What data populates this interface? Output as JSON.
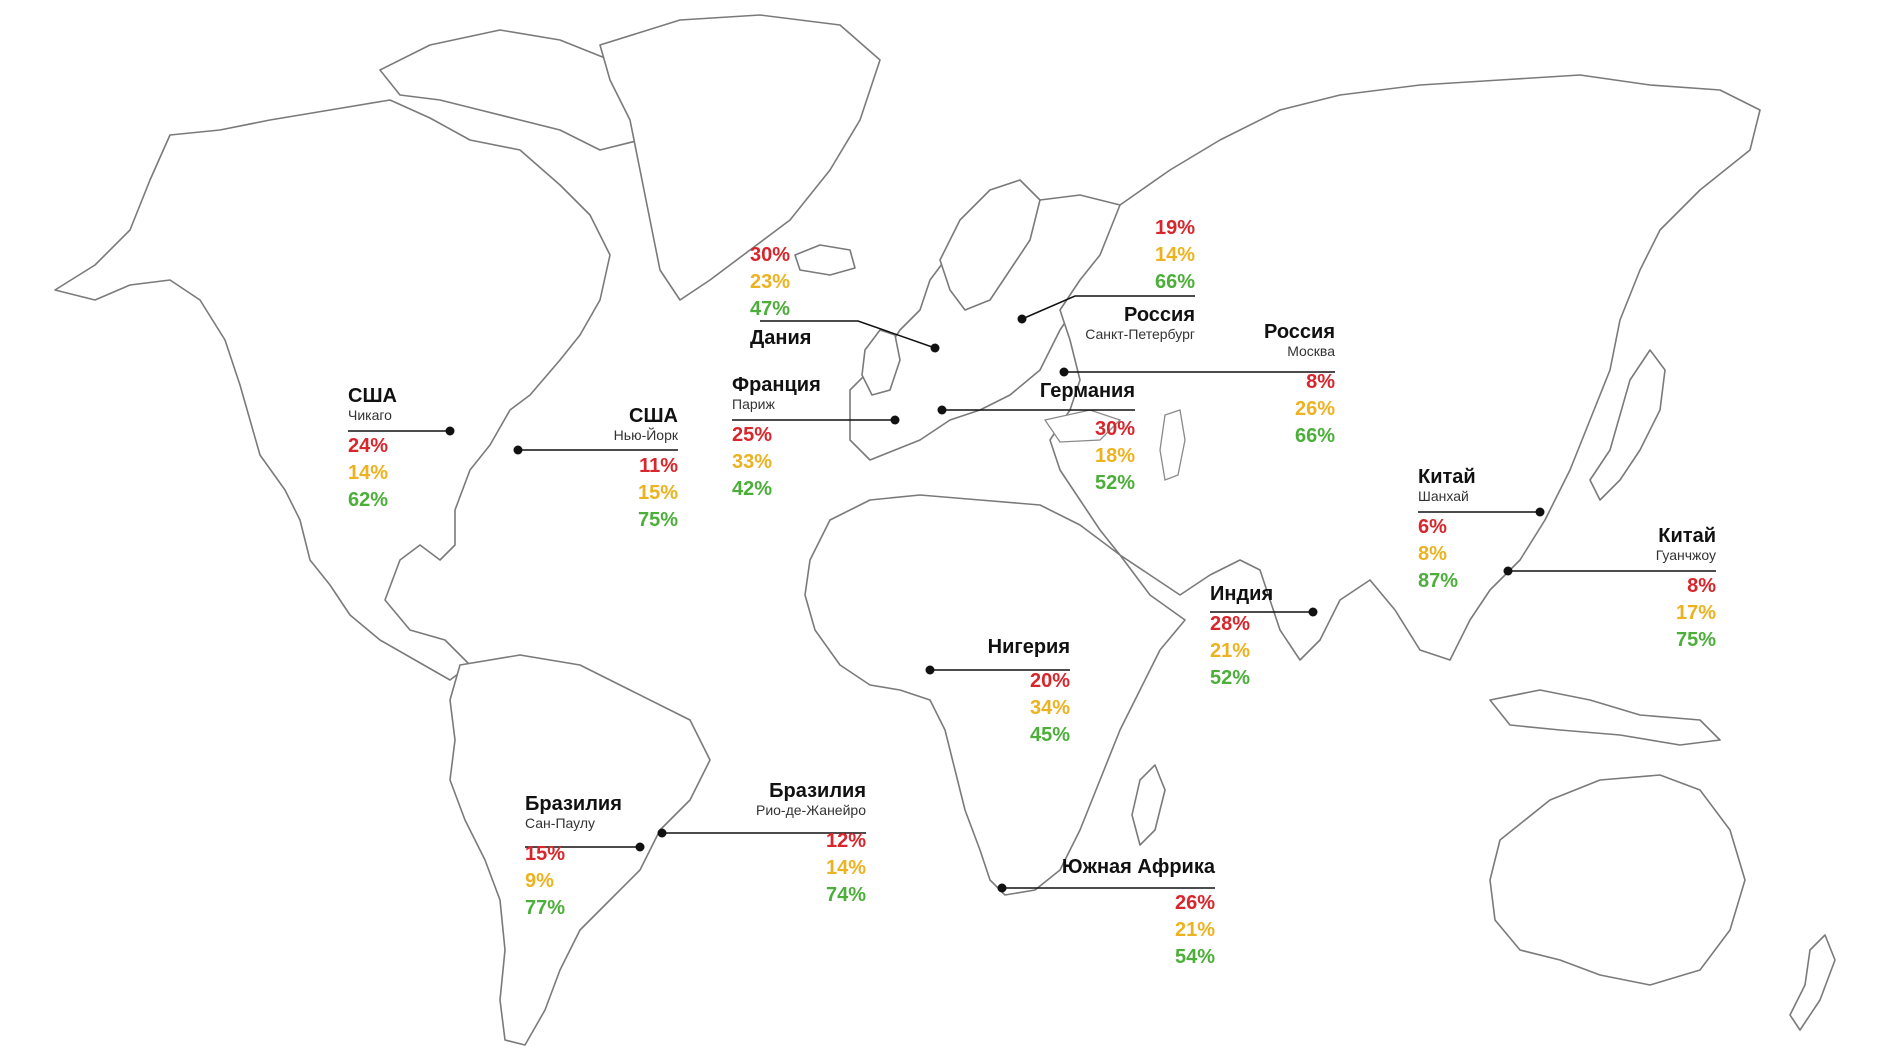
{
  "colors": {
    "red": "#d7262c",
    "yellow": "#ecb220",
    "green": "#4caf3a",
    "land_outline": "#7a7a7a"
  },
  "callouts": [
    {
      "country": "США",
      "city": "Чикаго",
      "values": [
        "24%",
        "14%",
        "62%"
      ]
    },
    {
      "country": "США",
      "city": "Нью-Йорк",
      "values": [
        "11%",
        "15%",
        "75%"
      ]
    },
    {
      "country": "Дания",
      "city": "",
      "values": [
        "30%",
        "23%",
        "47%"
      ]
    },
    {
      "country": "Франция",
      "city": "Париж",
      "values": [
        "25%",
        "33%",
        "42%"
      ]
    },
    {
      "country": "Россия",
      "city": "Санкт-Петербург",
      "values": [
        "19%",
        "14%",
        "66%"
      ]
    },
    {
      "country": "Россия",
      "city": "Москва",
      "values": [
        "8%",
        "26%",
        "66%"
      ]
    },
    {
      "country": "Германия",
      "city": "",
      "values": [
        "30%",
        "18%",
        "52%"
      ]
    },
    {
      "country": "Китай",
      "city": "Шанхай",
      "values": [
        "6%",
        "8%",
        "87%"
      ]
    },
    {
      "country": "Китай",
      "city": "Гуанчжоу",
      "values": [
        "8%",
        "17%",
        "75%"
      ]
    },
    {
      "country": "Индия",
      "city": "",
      "values": [
        "28%",
        "21%",
        "52%"
      ]
    },
    {
      "country": "Нигерия",
      "city": "",
      "values": [
        "20%",
        "34%",
        "45%"
      ]
    },
    {
      "country": "Бразилия",
      "city": "Сан-Паулу",
      "values": [
        "15%",
        "9%",
        "77%"
      ]
    },
    {
      "country": "Бразилия",
      "city": "Рио-де-Жанейро",
      "values": [
        "12%",
        "14%",
        "74%"
      ]
    },
    {
      "country": "Южная Африка",
      "city": "",
      "values": [
        "26%",
        "21%",
        "54%"
      ]
    }
  ]
}
